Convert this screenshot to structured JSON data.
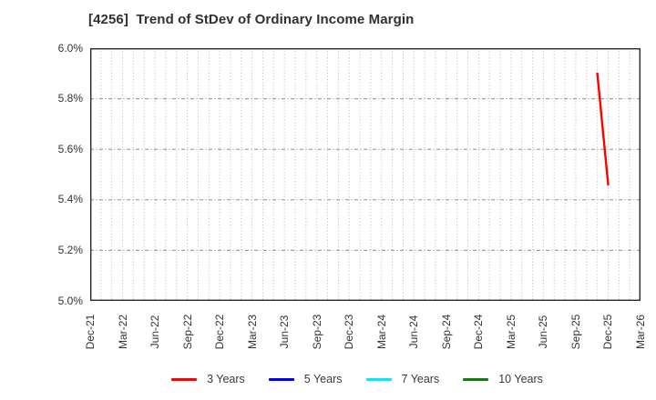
{
  "title": "[4256]  Trend of StDev of Ordinary Income Margin",
  "chart_data": {
    "type": "line",
    "title": "[4256]  Trend of StDev of Ordinary Income Margin",
    "x_tick_labels": [
      "Dec-21",
      "Mar-22",
      "Jun-22",
      "Sep-22",
      "Dec-22",
      "Mar-23",
      "Jun-23",
      "Sep-23",
      "Dec-23",
      "Mar-24",
      "Jun-24",
      "Sep-24",
      "Dec-24",
      "Mar-25",
      "Jun-25",
      "Sep-25",
      "Dec-25",
      "Mar-26"
    ],
    "y_tick_labels": [
      "5.0%",
      "5.2%",
      "5.4%",
      "5.6%",
      "5.8%",
      "6.0%"
    ],
    "ylim": [
      5.0,
      6.0
    ],
    "y_gridlines": [
      5.2,
      5.4,
      5.6,
      5.8
    ],
    "grid": {
      "vertical": "monthly dotted",
      "horizontal": "dash-dot at each 0.2%"
    },
    "legend_position": "bottom",
    "series": [
      {
        "name": "3 Years",
        "color": "#ff0000",
        "points": [
          {
            "date": "Nov-25",
            "value": 5.9
          },
          {
            "date": "Dec-25",
            "value": 5.46
          }
        ]
      },
      {
        "name": "5 Years",
        "color": "#0000ff",
        "points": []
      },
      {
        "name": "7 Years",
        "color": "#00eaff",
        "points": []
      },
      {
        "name": "10 Years",
        "color": "#0f7d0f",
        "points": []
      }
    ]
  },
  "style_colors": {
    "spine": "#2b2b2b",
    "vertical_grid": "#b8b8b8",
    "horizontal_grid": "#8f8f8f",
    "text": "#333333"
  }
}
